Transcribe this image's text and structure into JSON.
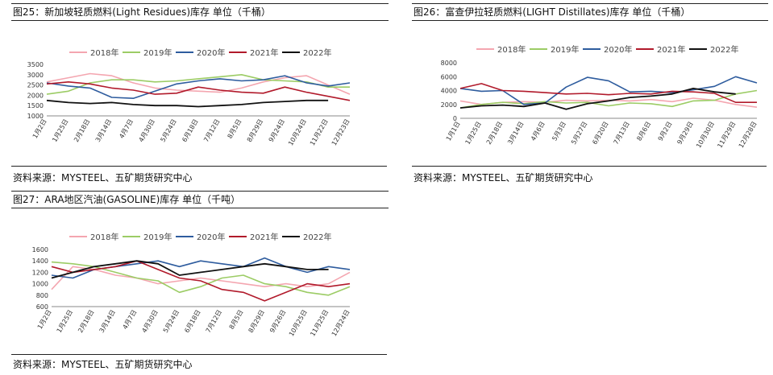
{
  "panels": [
    {
      "title": "图25：新加坡轻质燃料(Light Residues)库存 单位（千桶）",
      "source": "资料来源：MYSTEEL、五矿期货研究中心"
    },
    {
      "title": "图26：富查伊拉轻质燃料(LIGHT Distillates)库存 单位（千桶）",
      "source": "资料来源：MYSTEEL、五矿期货研究中心"
    },
    {
      "title": "图27：ARA地区汽油(GASOLINE)库存 单位（千吨）",
      "source": "资料来源：MYSTEEL、五矿期货研究中心"
    }
  ],
  "chart_data": [
    {
      "type": "line",
      "title": "图25：新加坡轻质燃料(Light Residues)库存 单位（千桶）",
      "ylim": [
        1000,
        3500
      ],
      "yticks": [
        "1000",
        "1500",
        "2000",
        "2500",
        "3000",
        "3500"
      ],
      "x": [
        "1月2日",
        "1月25日",
        "2月18日",
        "3月14日",
        "4月7日",
        "4月30日",
        "5月24日",
        "6月18日",
        "7月12日",
        "8月5日",
        "8月29日",
        "9月24日",
        "10月24日",
        "11月22日",
        "12月23日"
      ],
      "series": [
        {
          "name": "2018年",
          "color": "#f4a6b0",
          "values": [
            2650,
            2850,
            3050,
            2950,
            2600,
            2350,
            2250,
            2200,
            2150,
            2350,
            2650,
            2850,
            2950,
            2500,
            2050
          ]
        },
        {
          "name": "2019年",
          "color": "#9ccc65",
          "values": [
            2050,
            2200,
            2600,
            2750,
            2750,
            2650,
            2700,
            2800,
            2900,
            3000,
            2750,
            2700,
            2650,
            2400,
            2400
          ]
        },
        {
          "name": "2020年",
          "color": "#2e5c9e",
          "values": [
            2600,
            2450,
            2350,
            1900,
            1850,
            2200,
            2550,
            2700,
            2800,
            2700,
            2750,
            2950,
            2600,
            2450,
            2600
          ]
        },
        {
          "name": "2021年",
          "color": "#b11a2b",
          "values": [
            2550,
            2650,
            2550,
            2350,
            2250,
            2050,
            2100,
            2400,
            2250,
            2150,
            2100,
            2400,
            2150,
            1950,
            1750
          ]
        },
        {
          "name": "2022年",
          "color": "#111111",
          "values": [
            1750,
            1650,
            1600,
            1650,
            1550,
            1500,
            1500,
            1450,
            1500,
            1550,
            1650,
            1700,
            1750,
            1750,
            null
          ]
        }
      ]
    },
    {
      "type": "line",
      "title": "图26：富查伊拉轻质燃料(LIGHT Distillates)库存 单位（千桶）",
      "ylim": [
        0,
        8000
      ],
      "yticks": [
        "0",
        "2000",
        "4000",
        "6000",
        "8000"
      ],
      "x": [
        "1月1日",
        "1月25日",
        "2月18日",
        "3月14日",
        "4月6日",
        "5月3日",
        "5月27日",
        "6月20日",
        "7月13日",
        "8月6日",
        "9月2日",
        "9月29日",
        "10月30日",
        "11月29日",
        "12月28日"
      ],
      "series": [
        {
          "name": "2018年",
          "color": "#f4a6b0",
          "values": [
            2500,
            2000,
            2300,
            2400,
            2300,
            2600,
            2500,
            2600,
            2500,
            2700,
            2400,
            2900,
            2600,
            2000,
            1600
          ]
        },
        {
          "name": "2019年",
          "color": "#9ccc65",
          "values": [
            1500,
            2000,
            2300,
            2100,
            2400,
            2200,
            2300,
            1800,
            2200,
            2100,
            1700,
            2500,
            2600,
            3500,
            4000
          ]
        },
        {
          "name": "2020年",
          "color": "#2e5c9e",
          "values": [
            4300,
            3900,
            4000,
            2000,
            2200,
            4500,
            5900,
            5400,
            3800,
            3900,
            3700,
            4100,
            4600,
            6000,
            5100
          ]
        },
        {
          "name": "2021年",
          "color": "#b11a2b",
          "values": [
            4300,
            5000,
            4000,
            3900,
            3700,
            3500,
            3600,
            3400,
            3600,
            3500,
            3900,
            3800,
            3600,
            2300,
            2300
          ]
        },
        {
          "name": "2022年",
          "color": "#111111",
          "values": [
            1500,
            1800,
            1900,
            1700,
            2200,
            1300,
            2100,
            2500,
            3000,
            3200,
            3500,
            4300,
            3800,
            3500,
            null
          ]
        }
      ]
    },
    {
      "type": "line",
      "title": "图27：ARA地区汽油(GASOLINE)库存 单位（千吨）",
      "ylim": [
        600,
        1600
      ],
      "yticks": [
        "600",
        "800",
        "1000",
        "1200",
        "1400",
        "1600"
      ],
      "x": [
        "1月2日",
        "1月25日",
        "2月18日",
        "3月14日",
        "4月7日",
        "4月30日",
        "5月24日",
        "6月18日",
        "7月12日",
        "8月5日",
        "8月29日",
        "9月26日",
        "10月25日",
        "11月25日",
        "12月24日"
      ],
      "series": [
        {
          "name": "2018年",
          "color": "#f4a6b0",
          "values": [
            900,
            1300,
            1250,
            1150,
            1100,
            1000,
            1050,
            1100,
            1050,
            1000,
            950,
            1000,
            950,
            1000,
            1200
          ]
        },
        {
          "name": "2019年",
          "color": "#9ccc65",
          "values": [
            1380,
            1350,
            1300,
            1200,
            1100,
            1050,
            850,
            950,
            1100,
            1150,
            1000,
            950,
            850,
            800,
            950
          ]
        },
        {
          "name": "2020年",
          "color": "#2e5c9e",
          "values": [
            1150,
            1100,
            1250,
            1300,
            1350,
            1400,
            1300,
            1400,
            1350,
            1300,
            1450,
            1300,
            1200,
            1300,
            1250
          ]
        },
        {
          "name": "2021年",
          "color": "#b11a2b",
          "values": [
            1300,
            1200,
            1250,
            1300,
            1400,
            1250,
            1100,
            1050,
            900,
            850,
            700,
            850,
            1000,
            950,
            1000
          ]
        },
        {
          "name": "2022年",
          "color": "#111111",
          "values": [
            1100,
            1200,
            1300,
            1350,
            1400,
            1350,
            1150,
            1200,
            1250,
            1300,
            1350,
            1300,
            1250,
            1250,
            null
          ]
        }
      ]
    }
  ]
}
